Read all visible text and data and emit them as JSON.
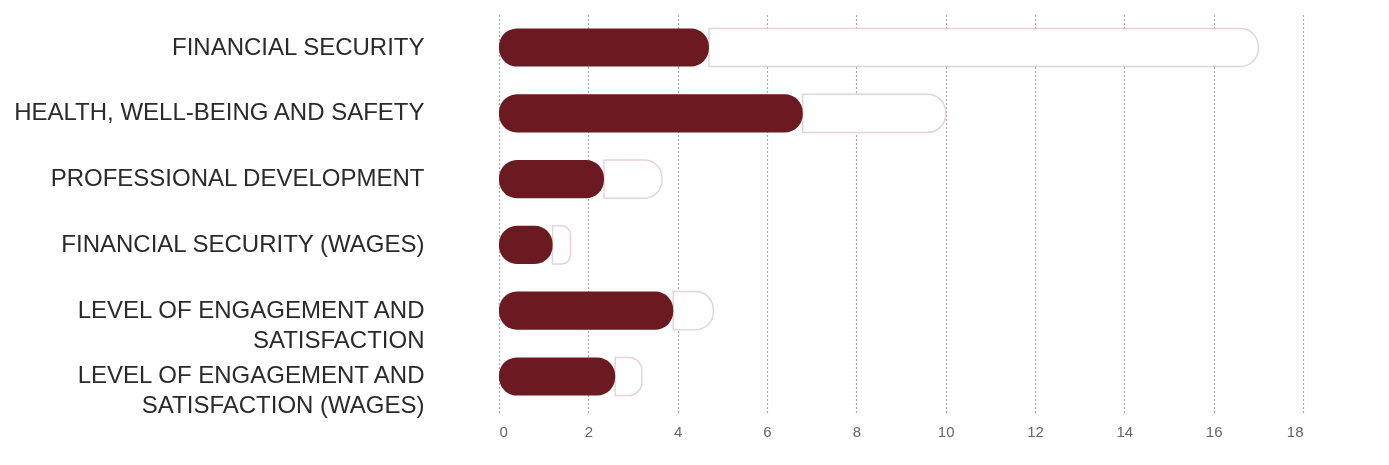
{
  "chart_data": {
    "type": "bar",
    "orientation": "horizontal",
    "categories": [
      "FINANCIAL SECURITY",
      "HEALTH, WELL-BEING AND SAFETY",
      "PROFESSIONAL DEVELOPMENT",
      "FINANCIAL SECURITY (WAGES)",
      "LEVEL OF ENGAGEMENT AND SATISFACTION",
      "LEVEL OF ENGAGEMENT AND SATISFACTION (WAGES)"
    ],
    "series": [
      {
        "color": "#6b1a21",
        "values": [
          4.7,
          6.8,
          2.35,
          1.2,
          3.9,
          2.6
        ]
      },
      {
        "color": "#e6d3d6",
        "values": [
          12.3,
          3.2,
          1.3,
          0.4,
          0.9,
          0.6
        ]
      }
    ],
    "stacked": true,
    "xlim": [
      0,
      18
    ],
    "xticks": [
      0,
      2,
      4,
      6,
      8,
      10,
      12,
      14,
      16,
      18
    ],
    "grid": "x"
  }
}
